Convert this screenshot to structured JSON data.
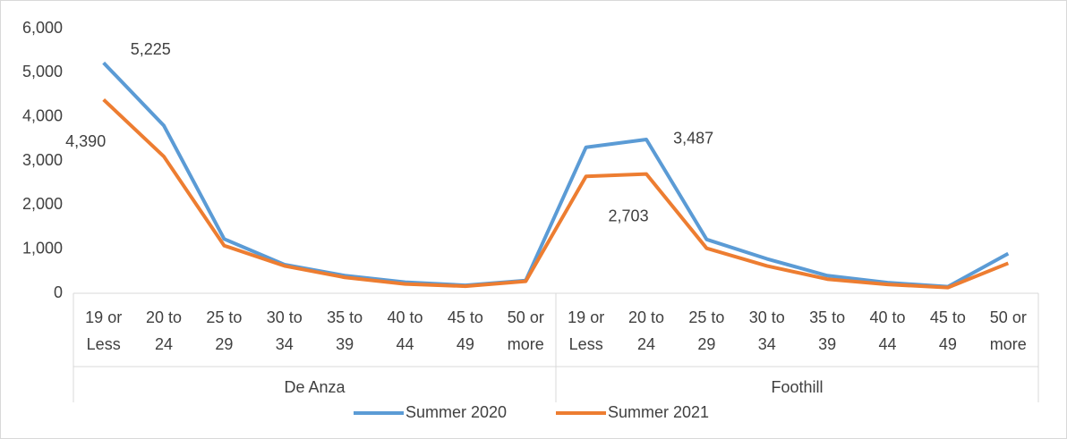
{
  "chart_data": {
    "type": "line",
    "category_groups": [
      {
        "label": "De Anza",
        "categories": [
          "19 or Less",
          "20 to 24",
          "25 to 29",
          "30 to 34",
          "35 to 39",
          "40 to 44",
          "45 to 49",
          "50 or more"
        ]
      },
      {
        "label": "Foothill",
        "categories": [
          "19 or Less",
          "20 to 24",
          "25 to 29",
          "30 to 34",
          "35 to 39",
          "40 to 44",
          "45 to 49",
          "50 or more"
        ]
      }
    ],
    "series": [
      {
        "name": "Summer 2020",
        "color": "#5b9bd5",
        "values": [
          5225,
          3800,
          1230,
          650,
          400,
          250,
          180,
          290,
          3310,
          3487,
          1220,
          780,
          400,
          240,
          150,
          900
        ],
        "value_labels": [
          "5,225",
          null,
          null,
          null,
          null,
          null,
          null,
          null,
          null,
          "3,487",
          null,
          null,
          null,
          null,
          null,
          null
        ]
      },
      {
        "name": "Summer 2021",
        "color": "#ed7d31",
        "values": [
          4390,
          3100,
          1080,
          620,
          360,
          210,
          160,
          270,
          2650,
          2703,
          1020,
          620,
          320,
          200,
          130,
          680
        ],
        "value_labels": [
          "4,390",
          null,
          null,
          null,
          null,
          null,
          null,
          null,
          null,
          "2,703",
          null,
          null,
          null,
          null,
          null,
          null
        ]
      }
    ],
    "ylim": [
      0,
      6000
    ],
    "yticks": [
      0,
      {
        "value": 1000,
        "label": "1,000"
      },
      {
        "value": 2000,
        "label": "2,000"
      },
      {
        "value": 3000,
        "label": "3,000"
      },
      {
        "value": 4000,
        "label": "4,000"
      },
      {
        "value": 5000,
        "label": "5,000"
      },
      {
        "value": 6000,
        "label": "6,000"
      }
    ],
    "legend": "bottom"
  }
}
